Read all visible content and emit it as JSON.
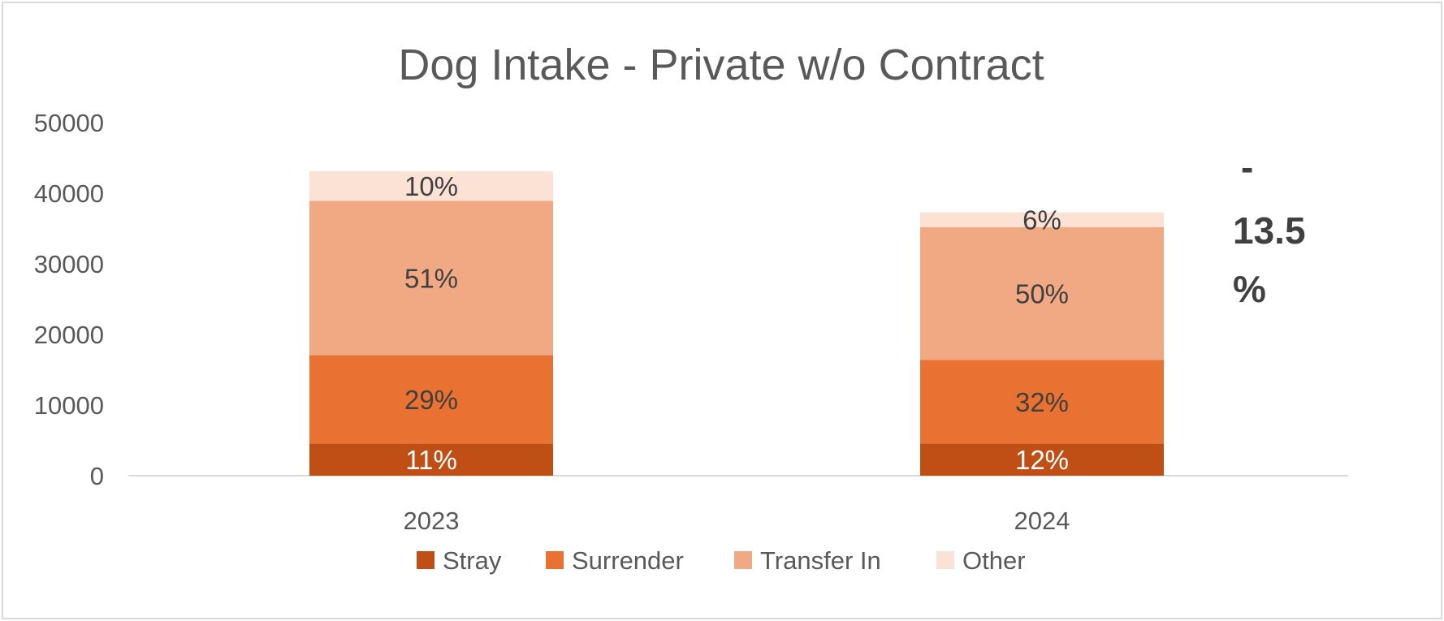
{
  "chart_data": {
    "type": "bar",
    "stacked": true,
    "title": "Dog Intake - Private w/o Contract",
    "xlabel": "",
    "ylabel": "",
    "categories": [
      "2023",
      "2024"
    ],
    "ylim": [
      0,
      50000
    ],
    "yticks": [
      "0",
      "10000",
      "20000",
      "30000",
      "40000",
      "50000"
    ],
    "grid": false,
    "legend_position": "bottom",
    "series": [
      {
        "name": "Stray",
        "values": [
          4560,
          4560
        ],
        "labels": [
          "11%",
          "12%"
        ],
        "color": "#C04F15",
        "label_color": "#ffffff"
      },
      {
        "name": "Surrender",
        "values": [
          12500,
          11850
        ],
        "labels": [
          "29%",
          "32%"
        ],
        "color": "#E97132",
        "label_color": "#404040"
      },
      {
        "name": "Transfer In",
        "values": [
          21870,
          18790
        ],
        "labels": [
          "51%",
          "50%"
        ],
        "color": "#F1A983",
        "label_color": "#404040"
      },
      {
        "name": "Other",
        "values": [
          4170,
          2080
        ],
        "labels": [
          "10%",
          "6%"
        ],
        "color": "#FBE2D5",
        "label_color": "#404040"
      }
    ],
    "annotation": {
      "lines": [
        "-",
        "13.5",
        "%"
      ]
    }
  }
}
